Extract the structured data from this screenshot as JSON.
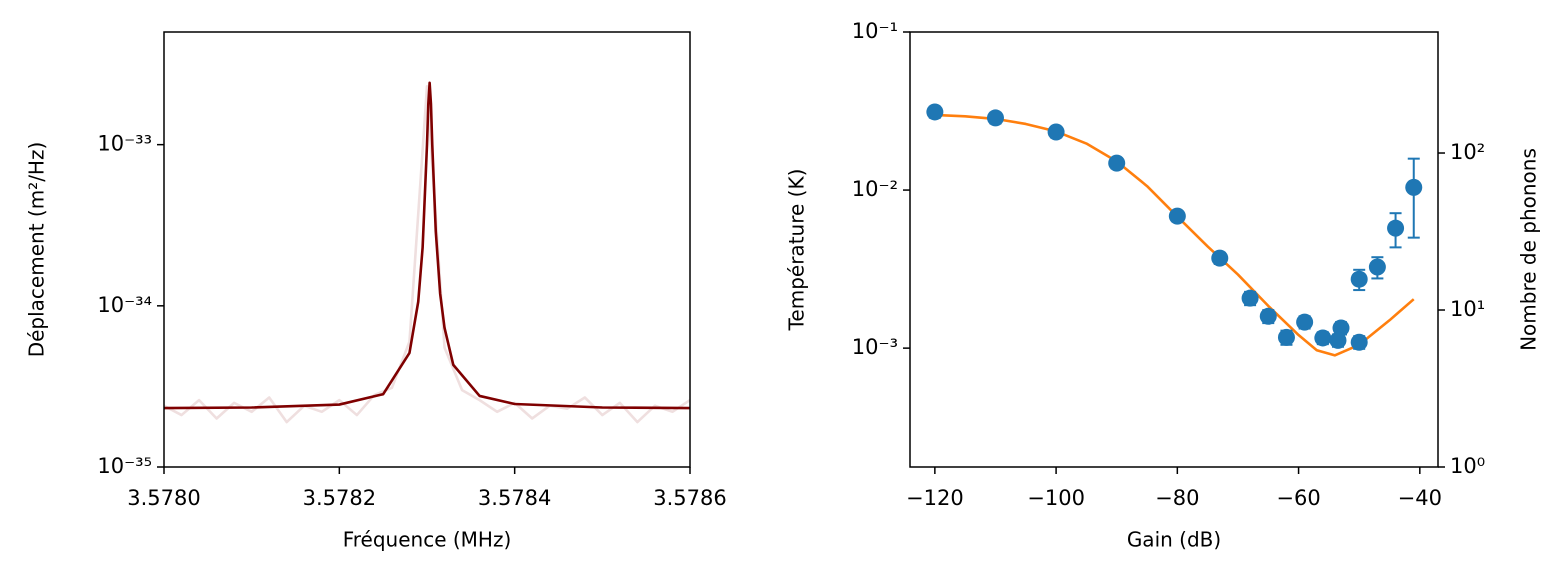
{
  "chart_data": [
    {
      "type": "line",
      "xlabel": "Fréquence (MHz)",
      "ylabel": "Déplacement (m²/Hz)",
      "ylog": true,
      "xlim": [
        3.578,
        3.5786
      ],
      "xticks": [
        {
          "value": 3.578,
          "label": "3.5780"
        },
        {
          "value": 3.5782,
          "label": "3.5782"
        },
        {
          "value": 3.5784,
          "label": "3.5784"
        },
        {
          "value": 3.5786,
          "label": "3.5786"
        }
      ],
      "ylim": [
        1e-35,
        5e-33
      ],
      "yticks": [
        {
          "value": 1e-35,
          "label": "10⁻³⁵"
        },
        {
          "value": 1e-34,
          "label": "10⁻³⁴"
        },
        {
          "value": 1e-33,
          "label": "10⁻³³"
        }
      ],
      "series": [
        {
          "color": "#efdfdf",
          "x": [
            3.578,
            3.57802,
            3.57804,
            3.57806,
            3.57808,
            3.5781,
            3.57812,
            3.57814,
            3.57816,
            3.57818,
            3.5782,
            3.57822,
            3.57824,
            3.57826,
            3.57828,
            3.5783,
            3.57832,
            3.57834,
            3.57836,
            3.57838,
            3.5784,
            3.57842,
            3.57844,
            3.57846,
            3.57848,
            3.5785,
            3.57852,
            3.57854,
            3.57856,
            3.57858,
            3.5786
          ],
          "values": [
            2.4e-35,
            2.1e-35,
            2.6e-35,
            2e-35,
            2.5e-35,
            2.2e-35,
            2.7e-35,
            1.9e-35,
            2.4e-35,
            2.2e-35,
            2.6e-35,
            2.1e-35,
            2.8e-35,
            3.1e-35,
            6e-35,
            2.3e-33,
            5.5e-35,
            3e-35,
            2.6e-35,
            2.2e-35,
            2.5e-35,
            2e-35,
            2.4e-35,
            2.3e-35,
            2.7e-35,
            2.1e-35,
            2.5e-35,
            1.9e-35,
            2.4e-35,
            2.2e-35,
            2.6e-35
          ]
        },
        {
          "color": "#7f0000",
          "x": [
            3.578,
            3.5781,
            3.5782,
            3.57825,
            3.57828,
            3.57829,
            3.578295,
            3.5783,
            3.5783015,
            3.578303,
            3.5783045,
            3.578306,
            3.57831,
            3.578315,
            3.57832,
            3.57833,
            3.57836,
            3.5784,
            3.5785,
            3.5786
          ],
          "values": [
            2.32e-35,
            2.34e-35,
            2.44e-35,
            2.83e-35,
            5.1e-35,
            1.06e-34,
            2.3e-34,
            1e-33,
            1.79e-33,
            2.42e-33,
            1.79e-33,
            1e-33,
            2.9e-34,
            1.19e-34,
            7.3e-35,
            4.3e-35,
            2.76e-35,
            2.46e-35,
            2.34e-35,
            2.32e-35
          ]
        }
      ]
    },
    {
      "type": "scatter",
      "xlabel": "Gain (dB)",
      "ylabel": "Température (K)",
      "y2label": "Nombre de phonons",
      "ylog": true,
      "xlim": [
        -124.1,
        -37.0
      ],
      "xticks": [
        {
          "value": -120,
          "label": "−120"
        },
        {
          "value": -100,
          "label": "−100"
        },
        {
          "value": -80,
          "label": "−80"
        },
        {
          "value": -60,
          "label": "−60"
        },
        {
          "value": -40,
          "label": "−40"
        }
      ],
      "ylim": [
        0.000177,
        0.1
      ],
      "yticks": [
        {
          "value": 0.001,
          "label": "10⁻³"
        },
        {
          "value": 0.01,
          "label": "10⁻²"
        },
        {
          "value": 0.1,
          "label": "10⁻¹"
        }
      ],
      "y2lim": [
        1,
        590
      ],
      "y2ticks": [
        {
          "value": 1,
          "label": "10⁰"
        },
        {
          "value": 10,
          "label": "10¹"
        },
        {
          "value": 100,
          "label": "10²"
        }
      ],
      "series": [
        {
          "color": "#ff7f0e",
          "kind": "line",
          "x": [
            -121,
            -115,
            -110,
            -105,
            -100,
            -95,
            -90,
            -85,
            -80,
            -75,
            -70,
            -65,
            -60,
            -57,
            -54,
            -50,
            -45,
            -41
          ],
          "values": [
            0.03,
            0.0293,
            0.0282,
            0.0262,
            0.0235,
            0.0197,
            0.0152,
            0.0106,
            0.0068,
            0.0044,
            0.00292,
            0.00185,
            0.00121,
            0.00097,
            0.0009,
            0.00105,
            0.0015,
            0.00204
          ]
        },
        {
          "color": "#1f77b4",
          "kind": "points",
          "x": [
            -120,
            -110,
            -100,
            -90,
            -80,
            -73,
            -68,
            -65,
            -62,
            -59,
            -56,
            -53,
            -53.5,
            -50,
            -50,
            -47,
            -44,
            -41
          ],
          "values": [
            0.0312,
            0.0286,
            0.0233,
            0.0148,
            0.00684,
            0.00371,
            0.00207,
            0.00159,
            0.00117,
            0.00146,
            0.00116,
            0.00134,
            0.00112,
            0.00109,
            0.00273,
            0.00326,
            0.00574,
            0.0104
          ],
          "errors": [
            0.0025,
            0.0022,
            0.0018,
            0.0011,
            0.0005,
            0.0003,
            0.0002,
            0.00015,
            0.00012,
            0.00013,
            0.0001,
            0.00012,
            0.0001,
            0.0001,
            0.0004,
            0.0005,
            0.0014,
            0.0054
          ]
        }
      ]
    }
  ]
}
